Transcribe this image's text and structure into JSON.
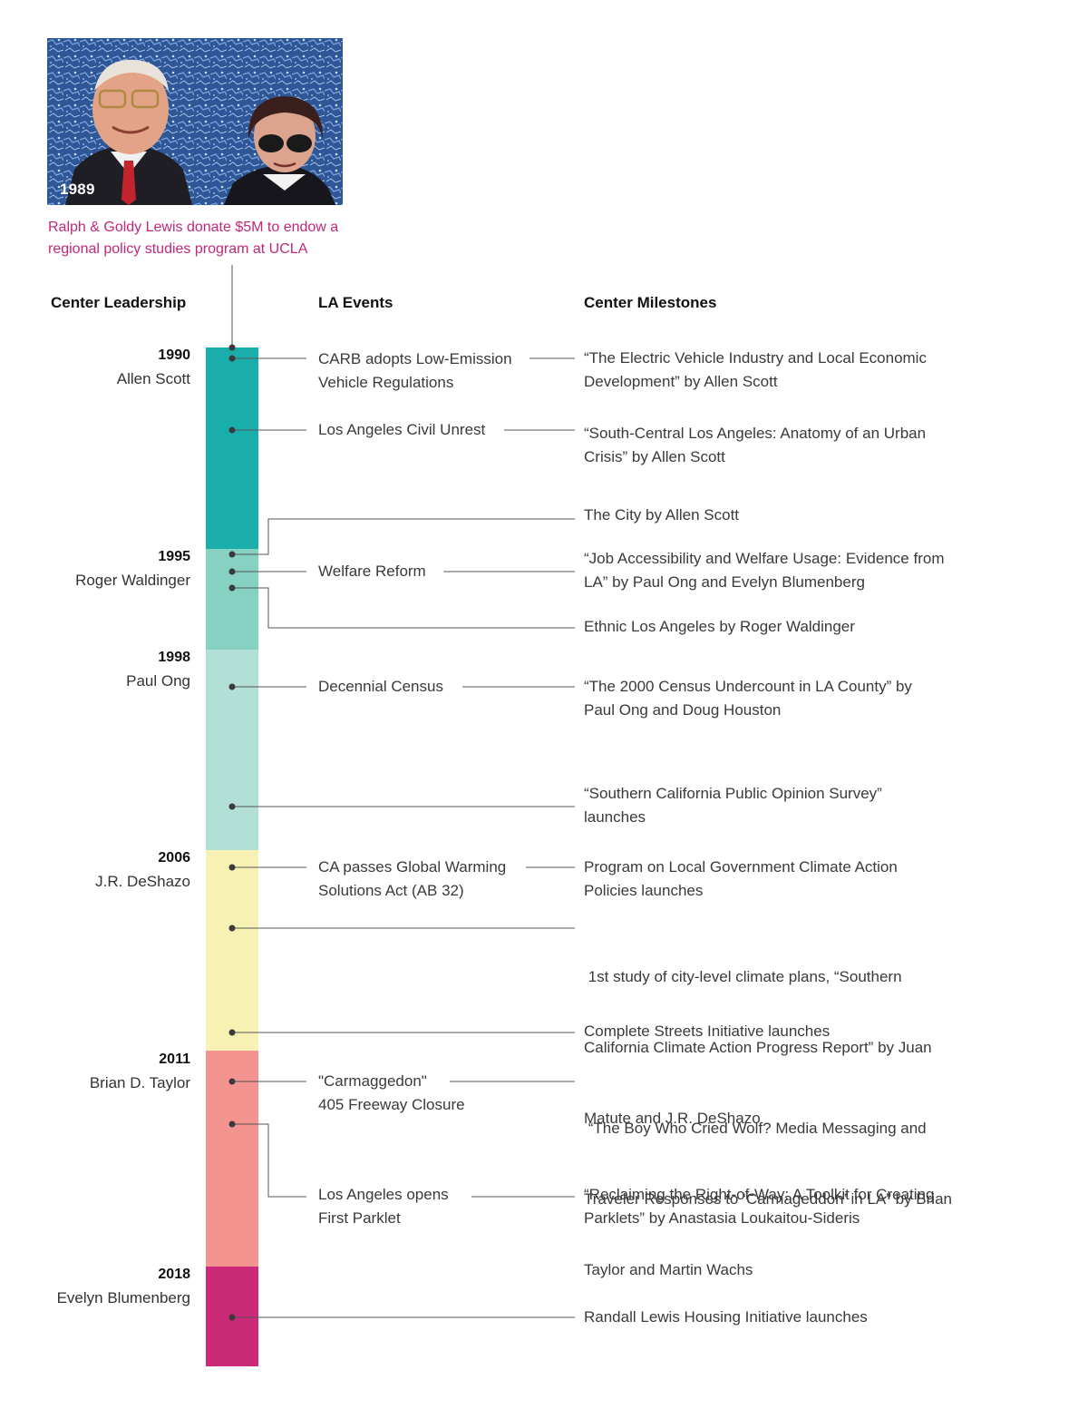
{
  "photo": {
    "year": "1989"
  },
  "caption": "Ralph & Goldy Lewis donate $5M to endow a regional policy studies program at UCLA",
  "columns": {
    "leadership": "Center Leadership",
    "events": "LA Events",
    "milestones": "Center Milestones"
  },
  "leaders": [
    {
      "year": "1990",
      "name": "Allen Scott"
    },
    {
      "year": "1995",
      "name": "Roger Waldinger"
    },
    {
      "year": "1998",
      "name": "Paul Ong"
    },
    {
      "year": "2006",
      "name": "J.R. DeShazo"
    },
    {
      "year": "2011",
      "name": "Brian D. Taylor"
    },
    {
      "year": "2018",
      "name": "Evelyn Blumenberg"
    }
  ],
  "segment_colors": [
    "#1aaeaa",
    "#86d1c1",
    "#b2e0d6",
    "#f7f2b3",
    "#f49490",
    "#cb2a78"
  ],
  "events": [
    {
      "lines": [
        "CARB adopts Low-Emission",
        "Vehicle Regulations"
      ]
    },
    {
      "lines": [
        "Los Angeles Civil Unrest"
      ]
    },
    {
      "lines": [
        "Welfare Reform"
      ]
    },
    {
      "lines": [
        "Decennial Census"
      ]
    },
    {
      "lines": [
        "CA passes Global Warming",
        "Solutions Act (AB 32)"
      ]
    },
    {
      "lines": [
        "\"Carmaggedon\"",
        "405 Freeway Closure"
      ]
    },
    {
      "lines": [
        "Los Angeles opens",
        "First Parklet"
      ]
    }
  ],
  "milestones": [
    {
      "lines": [
        "“The Electric Vehicle Industry and Local Economic",
        "Development” by Allen Scott"
      ]
    },
    {
      "lines": [
        "“South-Central Los Angeles: Anatomy of an Urban",
        "Crisis” by Allen Scott"
      ]
    },
    {
      "lines": [
        "The City by Allen Scott"
      ]
    },
    {
      "lines": [
        "“Job Accessibility and Welfare Usage: Evidence from",
        "LA” by Paul Ong and Evelyn Blumenberg"
      ]
    },
    {
      "lines": [
        "Ethnic Los Angeles  by Roger Waldinger"
      ]
    },
    {
      "lines": [
        "“The 2000 Census Undercount in LA County” by",
        "Paul Ong and Doug Houston"
      ]
    },
    {
      "lines": [
        "“Southern California Public Opinion Survey”",
        "launches"
      ]
    },
    {
      "lines": [
        "Program on Local Government Climate Action",
        "Policies launches"
      ]
    },
    {
      "lines": [
        " 1st study of city-level climate plans, “Southern",
        "California Climate Action Progress Report” by Juan",
        "Matute and J.R. DeShazo"
      ]
    },
    {
      "lines": [
        "Complete Streets Initiative launches"
      ]
    },
    {
      "lines": [
        " “The Boy Who Cried Wolf? Media Messaging and",
        "Traveler Responses to ‘Carmageddon’ in LA” by Brian",
        "Taylor and Martin Wachs"
      ]
    },
    {
      "lines": [
        "“Reclaiming the Right-of-Way: A Toolkit for Creating",
        "Parklets” by Anastasia Loukaitou-Sideris"
      ]
    },
    {
      "lines": [
        "Randall Lewis Housing Initiative launches"
      ]
    }
  ]
}
